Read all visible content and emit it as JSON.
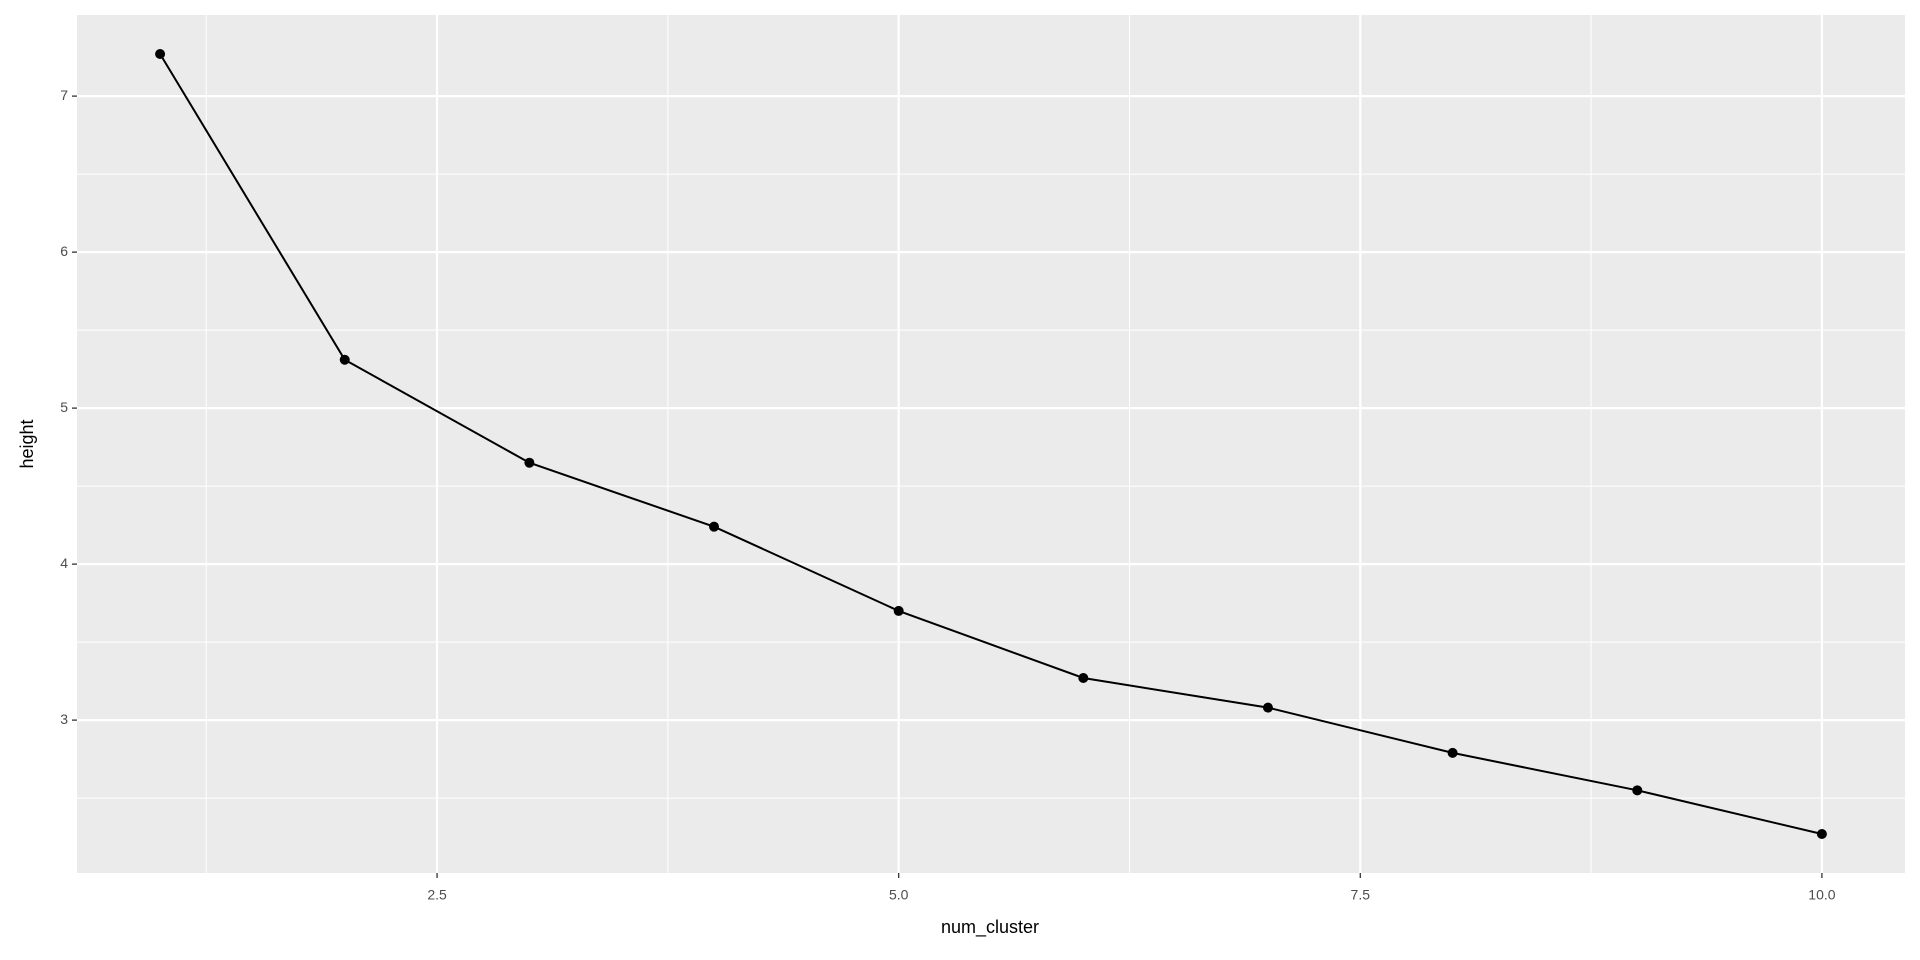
{
  "chart_data": {
    "type": "line",
    "x_label": "num_cluster",
    "y_label": "height",
    "x": [
      1,
      2,
      3,
      4,
      5,
      6,
      7,
      8,
      9,
      10
    ],
    "values": [
      7.27,
      5.31,
      4.65,
      4.24,
      3.7,
      3.27,
      3.08,
      2.79,
      2.55,
      2.27
    ],
    "color": "#000000",
    "xlim": [
      0.55,
      10.45
    ],
    "ylim": [
      2.02,
      7.52
    ],
    "xticks": [
      2.5,
      {
        "value": 5,
        "label": "5.0"
      },
      7.5,
      {
        "value": 10,
        "label": "10.0"
      }
    ],
    "yticks": [
      3,
      4,
      5,
      6,
      7
    ],
    "minor_xticks": [
      1.25,
      3.75,
      6.25,
      8.75
    ],
    "minor_yticks": [
      2.5,
      3.5,
      4.5,
      5.5,
      6.5
    ],
    "grid": true
  }
}
